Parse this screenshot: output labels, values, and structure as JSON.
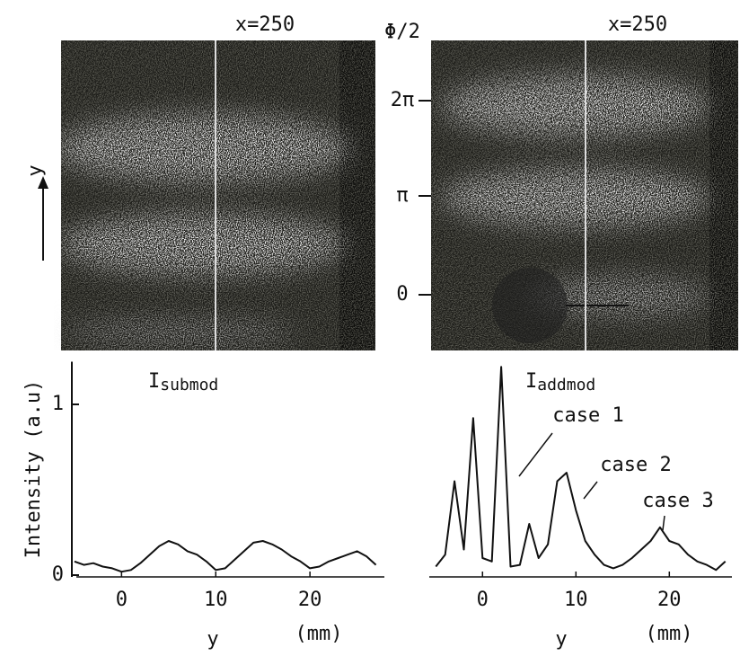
{
  "figure": {
    "left_image_label": "x=250",
    "right_image_label": "x=250",
    "phase_axis_title": "Φ/2",
    "phase_ticks": [
      "2π",
      "π",
      "0"
    ],
    "image_axis_label": "y"
  },
  "chart_data": [
    {
      "type": "line",
      "title": "I",
      "title_sub": "submod",
      "ylabel": "Intensity (a.u)",
      "xlabel": "y",
      "x_unit": "(mm)",
      "x": [
        -5,
        -4,
        -3,
        -2,
        -1,
        0,
        1,
        2,
        3,
        4,
        5,
        6,
        7,
        8,
        9,
        10,
        11,
        12,
        13,
        14,
        15,
        16,
        17,
        18,
        19,
        20,
        21,
        22,
        23,
        24,
        25,
        26,
        27
      ],
      "values": [
        0.08,
        0.06,
        0.07,
        0.05,
        0.04,
        0.02,
        0.03,
        0.07,
        0.12,
        0.17,
        0.2,
        0.18,
        0.14,
        0.12,
        0.08,
        0.03,
        0.04,
        0.09,
        0.14,
        0.19,
        0.2,
        0.18,
        0.15,
        0.11,
        0.08,
        0.04,
        0.05,
        0.08,
        0.1,
        0.12,
        0.14,
        0.11,
        0.06
      ],
      "color": "#111111",
      "xlim": [
        -4.8,
        27.9
      ],
      "ylim": [
        0,
        1.25
      ],
      "xticks": [
        0,
        10,
        20
      ],
      "yticks": [
        0,
        1
      ]
    },
    {
      "type": "line",
      "title": "I",
      "title_sub": "addmod",
      "xlabel": "y",
      "x_unit": "(mm)",
      "x": [
        -5,
        -4,
        -3,
        -2,
        -1,
        0,
        1,
        2,
        3,
        4,
        5,
        6,
        7,
        8,
        9,
        10,
        11,
        12,
        13,
        14,
        15,
        16,
        17,
        18,
        19,
        20,
        21,
        22,
        23,
        24,
        25,
        26
      ],
      "values": [
        0.05,
        0.12,
        0.55,
        0.15,
        0.92,
        0.1,
        0.08,
        1.22,
        0.05,
        0.06,
        0.3,
        0.1,
        0.18,
        0.55,
        0.6,
        0.38,
        0.2,
        0.12,
        0.06,
        0.04,
        0.06,
        0.1,
        0.15,
        0.2,
        0.28,
        0.2,
        0.18,
        0.12,
        0.08,
        0.06,
        0.03,
        0.08
      ],
      "color": "#111111",
      "xlim": [
        -5.7,
        26.7
      ],
      "ylim": [
        0,
        1.25
      ],
      "xticks": [
        0,
        10,
        20
      ],
      "annotations": [
        "case 1",
        "case 2",
        "case 3"
      ]
    }
  ]
}
